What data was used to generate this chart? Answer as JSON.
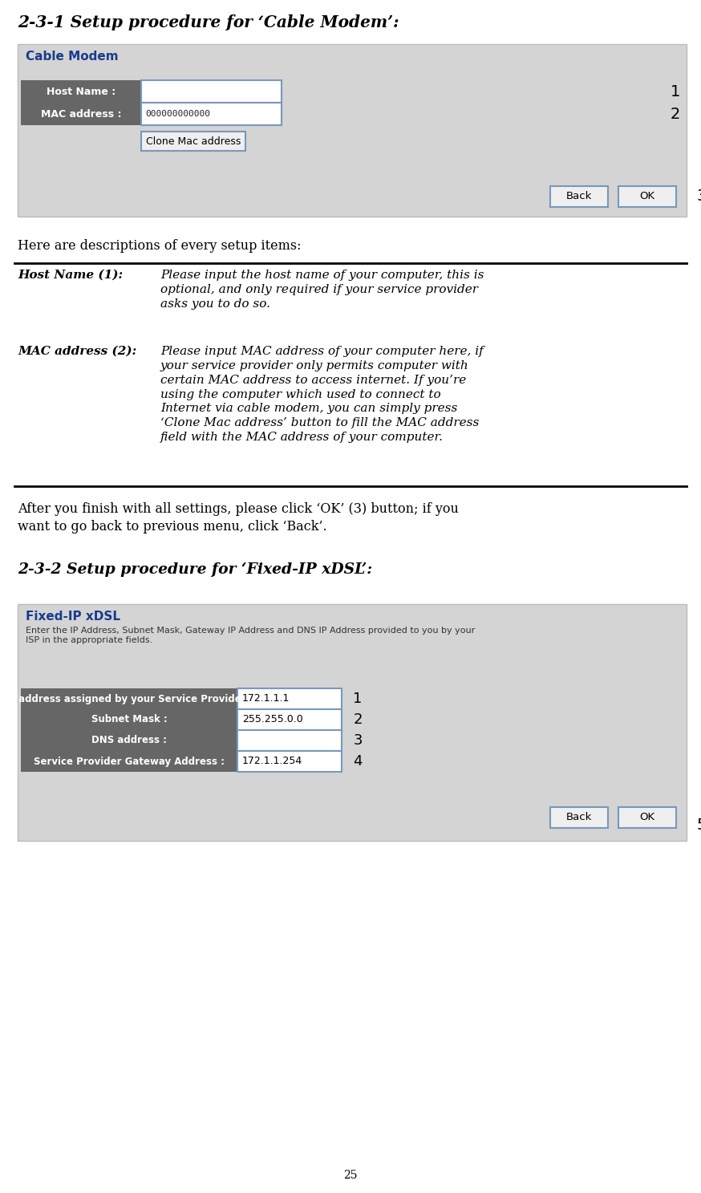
{
  "title1": "2-3-1 Setup procedure for ‘Cable Modem’:",
  "title2": "2-3-2 Setup procedure for ‘Fixed-IP xDSL’:",
  "cable_modem_label": "Cable Modem",
  "host_name_label": "Host Name :",
  "mac_address_label": "MAC address :",
  "mac_address_value": "000000000000",
  "clone_button": "Clone Mac address",
  "back_button": "Back",
  "ok_button": "OK",
  "desc_intro": "Here are descriptions of every setup items:",
  "host_name_item": "Host Name (1):",
  "host_name_desc": "Please input the host name of your computer, this is\noptional, and only required if your service provider\nasks you to do so.",
  "mac_item": "MAC address (2):",
  "mac_desc": "Please input MAC address of your computer here, if\nyour service provider only permits computer with\ncertain MAC address to access internet. If you’re\nusing the computer which used to connect to\nInternet via cable modem, you can simply press\n‘Clone Mac address’ button to fill the MAC address\nfield with the MAC address of your computer.",
  "after_text": "After you finish with all settings, please click ‘OK’ (3) button; if you\nwant to go back to previous menu, click ‘Back’.",
  "fixed_ip_label": "Fixed-IP xDSL",
  "fixed_ip_subtitle": "Enter the IP Address, Subnet Mask, Gateway IP Address and DNS IP Address provided to you by your\nISP in the appropriate fields.",
  "ip_label": "IP address assigned by your Service Provider :",
  "ip_value": "172.1.1.1",
  "subnet_label": "Subnet Mask :",
  "subnet_value": "255.255.0.0",
  "dns_label": "DNS address :",
  "dns_value": "",
  "gateway_label": "Service Provider Gateway Address :",
  "gateway_value": "172.1.1.254",
  "page_number": "25",
  "bg_color": "#ffffff",
  "panel_bg": "#d4d4d4",
  "header_bg": "#666666",
  "header_fg": "#ffffff",
  "input_bg": "#ffffff",
  "input_border": "#7799bb",
  "title_color": "#000000",
  "cable_modem_title_color": "#1a3a8c",
  "label_color": "#000000",
  "num_color": "#000000"
}
